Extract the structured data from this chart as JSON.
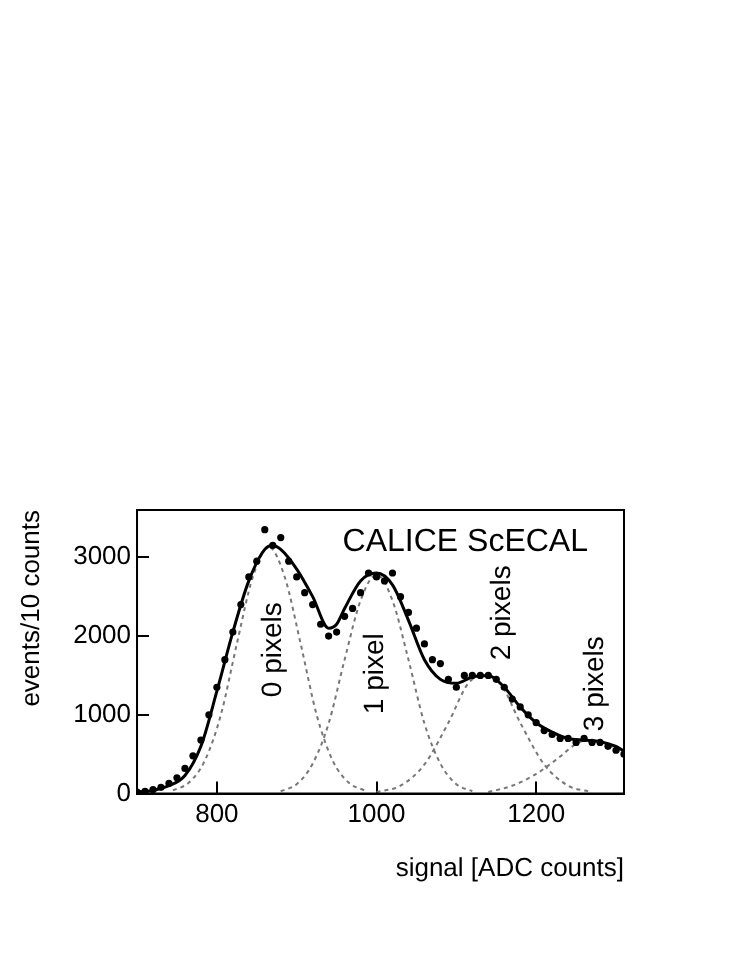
{
  "chart_data": {
    "type": "line",
    "xlabel": "signal [ADC counts]",
    "ylabel": "events/10 counts",
    "xlim": [
      700,
      1310
    ],
    "ylim": [
      0,
      3600
    ],
    "xticks": [
      800,
      1000,
      1200
    ],
    "yticks": [
      0,
      1000,
      2000,
      3000
    ],
    "grid": false,
    "legend": false,
    "annotations": [
      "CALICE ScECAL",
      "0 pixels",
      "1 pixel",
      "2 pixels",
      "3 pixels"
    ],
    "series": [
      {
        "type": "scatter",
        "marker": "circle",
        "color": "#000000",
        "x": [
          700,
          710,
          720,
          730,
          740,
          750,
          760,
          770,
          780,
          790,
          800,
          810,
          820,
          830,
          840,
          850,
          860,
          870,
          880,
          890,
          900,
          910,
          920,
          930,
          940,
          950,
          960,
          970,
          980,
          990,
          1000,
          1010,
          1020,
          1030,
          1040,
          1050,
          1060,
          1070,
          1080,
          1090,
          1100,
          1110,
          1120,
          1130,
          1140,
          1150,
          1160,
          1170,
          1180,
          1190,
          1200,
          1210,
          1220,
          1230,
          1240,
          1250,
          1260,
          1270,
          1280,
          1290,
          1300,
          1310
        ],
        "values": [
          20,
          30,
          50,
          80,
          130,
          200,
          320,
          480,
          680,
          1000,
          1350,
          1700,
          2050,
          2400,
          2750,
          2950,
          3350,
          3150,
          3250,
          2950,
          2750,
          2550,
          2400,
          2150,
          2000,
          2050,
          2250,
          2350,
          2550,
          2800,
          2750,
          2700,
          2800,
          2500,
          2300,
          2100,
          1900,
          1700,
          1650,
          1450,
          1350,
          1500,
          1500,
          1500,
          1500,
          1450,
          1350,
          1200,
          1100,
          1000,
          900,
          800,
          750,
          700,
          700,
          650,
          700,
          650,
          650,
          600,
          550,
          500
        ]
      },
      {
        "marker": "none",
        "line_style": "solid",
        "color": "#000000",
        "x": [
          700,
          720,
          740,
          760,
          780,
          800,
          820,
          840,
          860,
          870,
          880,
          900,
          920,
          940,
          950,
          960,
          980,
          1000,
          1020,
          1040,
          1060,
          1080,
          1100,
          1120,
          1140,
          1160,
          1180,
          1200,
          1220,
          1240,
          1260,
          1280,
          1300,
          1310
        ],
        "values": [
          20,
          40,
          100,
          230,
          600,
          1300,
          2050,
          2700,
          3100,
          3150,
          3100,
          2850,
          2500,
          2100,
          2150,
          2350,
          2700,
          2800,
          2650,
          2200,
          1700,
          1450,
          1400,
          1480,
          1500,
          1350,
          1100,
          900,
          780,
          700,
          680,
          660,
          600,
          540
        ]
      },
      {
        "marker": "none",
        "line_style": "dotted",
        "color": "#777777",
        "x": [
          745,
          765,
          785,
          805,
          825,
          845,
          865,
          885,
          905,
          925,
          945,
          965,
          985
        ],
        "values": [
          40,
          140,
          420,
          1000,
          1900,
          2750,
          3130,
          2750,
          1900,
          1000,
          420,
          140,
          40
        ]
      },
      {
        "marker": "none",
        "line_style": "dotted",
        "color": "#777777",
        "x": [
          880,
          900,
          920,
          940,
          960,
          980,
          1000,
          1020,
          1040,
          1060,
          1080,
          1100,
          1120
        ],
        "values": [
          30,
          120,
          380,
          890,
          1700,
          2450,
          2780,
          2450,
          1700,
          890,
          380,
          120,
          30
        ]
      },
      {
        "marker": "none",
        "line_style": "dotted",
        "color": "#777777",
        "x": [
          1000,
          1030,
          1060,
          1090,
          1115,
          1135,
          1155,
          1180,
          1210,
          1240,
          1270
        ],
        "values": [
          20,
          100,
          370,
          900,
          1400,
          1500,
          1400,
          900,
          370,
          100,
          20
        ]
      },
      {
        "marker": "none",
        "line_style": "dotted",
        "color": "#777777",
        "x": [
          1140,
          1170,
          1200,
          1230,
          1250,
          1265,
          1290,
          1310
        ],
        "values": [
          20,
          100,
          250,
          470,
          630,
          680,
          620,
          500
        ]
      }
    ]
  }
}
